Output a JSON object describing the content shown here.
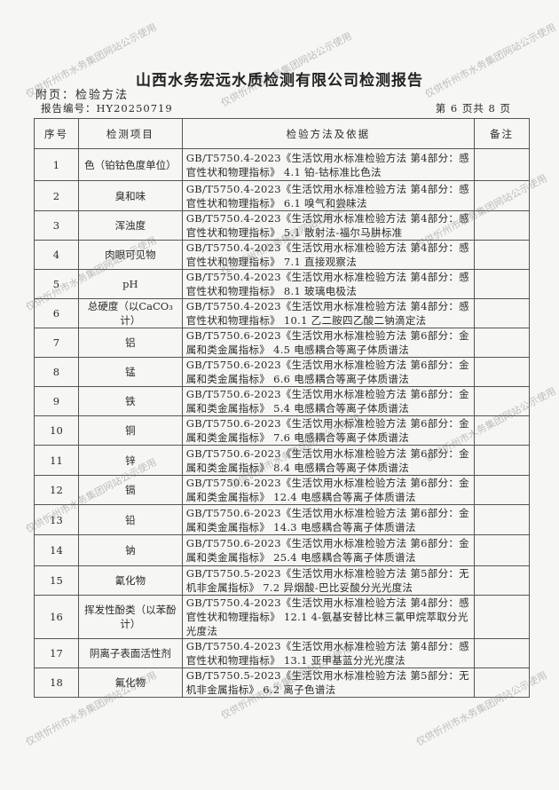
{
  "title": "山西水务宏远水质检测有限公司检测报告",
  "subtitle": "附页：检验方法",
  "report_no": "报告编号：HY20250719",
  "page_info": "第 6 页共 8 页",
  "watermark": "仅供忻州市水务集团网站公示使用",
  "table": {
    "headers": [
      "序号",
      "检测项目",
      "检验方法及依据",
      "备注"
    ],
    "rows": [
      {
        "no": "1",
        "item": "色（铂钴色度单位）",
        "method": "GB/T5750.4-2023《生活饮用水标准检验方法 第4部分：感官性状和物理指标》 4.1 铂-钴标准比色法",
        "note": ""
      },
      {
        "no": "2",
        "item": "臭和味",
        "method": "GB/T5750.4-2023《生活饮用水标准检验方法 第4部分：感官性状和物理指标》 6.1 嗅气和尝味法",
        "note": ""
      },
      {
        "no": "3",
        "item": "浑浊度",
        "method": "GB/T5750.4-2023《生活饮用水标准检验方法 第4部分：感官性状和物理指标》 5.1 散射法-福尔马肼标准",
        "note": ""
      },
      {
        "no": "4",
        "item": "肉眼可见物",
        "method": "GB/T5750.4-2023《生活饮用水标准检验方法 第4部分：感官性状和物理指标》 7.1 直接观察法",
        "note": ""
      },
      {
        "no": "5",
        "item": "pH",
        "method": "GB/T5750.4-2023《生活饮用水标准检验方法 第4部分：感官性状和物理指标》 8.1 玻璃电极法",
        "note": ""
      },
      {
        "no": "6",
        "item": "总硬度（以CaCO₃计）",
        "method": "GB/T5750.4-2023《生活饮用水标准检验方法 第4部分：感官性状和物理指标》 10.1 乙二胺四乙酸二钠滴定法",
        "note": ""
      },
      {
        "no": "7",
        "item": "铝",
        "method": "GB/T5750.6-2023《生活饮用水标准检验方法 第6部分：金属和类金属指标》 4.5 电感耦合等离子体质谱法",
        "note": ""
      },
      {
        "no": "8",
        "item": "锰",
        "method": "GB/T5750.6-2023《生活饮用水标准检验方法 第6部分：金属和类金属指标》 6.6 电感耦合等离子体质谱法",
        "note": ""
      },
      {
        "no": "9",
        "item": "铁",
        "method": "GB/T5750.6-2023《生活饮用水标准检验方法 第6部分：金属和类金属指标》 5.4 电感耦合等离子体质谱法",
        "note": ""
      },
      {
        "no": "10",
        "item": "铜",
        "method": "GB/T5750.6-2023《生活饮用水标准检验方法 第6部分：金属和类金属指标》 7.6 电感耦合等离子体质谱法",
        "note": ""
      },
      {
        "no": "11",
        "item": "锌",
        "method": "GB/T5750.6-2023《生活饮用水标准检验方法 第6部分：金属和类金属指标》 8.4 电感耦合等离子体质谱法",
        "note": ""
      },
      {
        "no": "12",
        "item": "镉",
        "method": "GB/T5750.6-2023《生活饮用水标准检验方法 第6部分：金属和类金属指标》 12.4 电感耦合等离子体质谱法",
        "note": ""
      },
      {
        "no": "13",
        "item": "铅",
        "method": "GB/T5750.6-2023《生活饮用水标准检验方法 第6部分：金属和类金属指标》 14.3 电感耦合等离子体质谱法",
        "note": ""
      },
      {
        "no": "14",
        "item": "钠",
        "method": "GB/T5750.6-2023《生活饮用水标准检验方法 第6部分：金属和类金属指标》 25.4 电感耦合等离子体质谱法",
        "note": ""
      },
      {
        "no": "15",
        "item": "氰化物",
        "method": "GB/T5750.5-2023《生活饮用水标准检验方法 第5部分：无机非金属指标》 7.2 异烟酸-巴比妥酸分光光度法",
        "note": ""
      },
      {
        "no": "16",
        "item": "挥发性酚类（以苯酚计）",
        "method": "GB/T5750.4-2023《生活饮用水标准检验方法 第4部分：感官性状和物理指标》 12.1 4-氨基安替比林三氯甲烷萃取分光光度法",
        "note": ""
      },
      {
        "no": "17",
        "item": "阴离子表面活性剂",
        "method": "GB/T5750.4-2023《生活饮用水标准检验方法 第4部分：感官性状和物理指标》 13.1 亚甲基蓝分光光度法",
        "note": ""
      },
      {
        "no": "18",
        "item": "氟化物",
        "method": "GB/T5750.5-2023《生活饮用水标准检验方法 第5部分：无机非金属指标》 6.2 离子色谱法",
        "note": ""
      }
    ]
  }
}
